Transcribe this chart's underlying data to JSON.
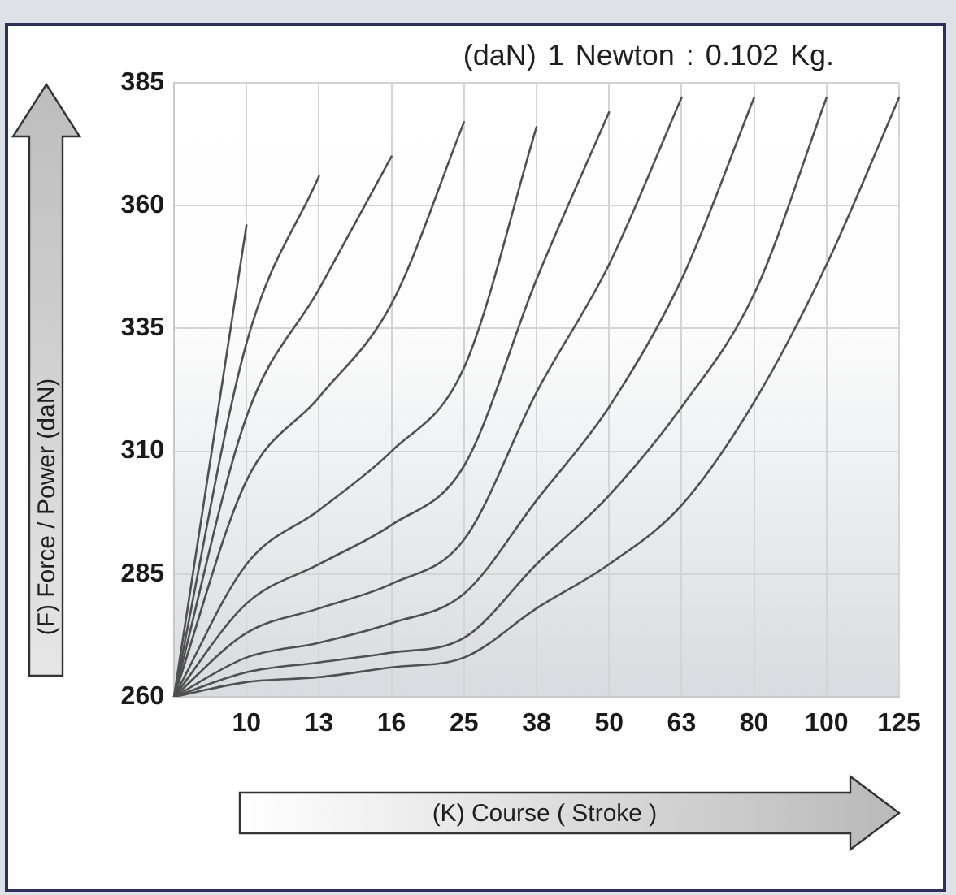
{
  "chart_data": {
    "type": "line",
    "title": "(daN) 1 Newton : 0.102 Kg.",
    "xlabel": "(K) Course ( Stroke )",
    "ylabel": "(F) Force / Power (daN)",
    "categories": [
      null,
      "10",
      "13",
      "16",
      "25",
      "38",
      "50",
      "63",
      "80",
      "100",
      "125"
    ],
    "ylim": [
      260,
      385
    ],
    "yticks": [
      260,
      285,
      310,
      335,
      360,
      385
    ],
    "grid": true,
    "marker": "none",
    "line_style": "solid",
    "series": [
      {
        "color": "#505050",
        "values": [
          260,
          356,
          null,
          null,
          null,
          null,
          null,
          null,
          null,
          null,
          null
        ]
      },
      {
        "color": "#505050",
        "values": [
          260,
          332,
          366,
          null,
          null,
          null,
          null,
          null,
          null,
          null,
          null
        ]
      },
      {
        "color": "#505050",
        "values": [
          260,
          317,
          343,
          370,
          null,
          null,
          null,
          null,
          null,
          null,
          null
        ]
      },
      {
        "color": "#505050",
        "values": [
          260,
          304,
          321,
          340,
          377,
          null,
          null,
          null,
          null,
          null,
          null
        ]
      },
      {
        "color": "#505050",
        "values": [
          260,
          287,
          298,
          310,
          327,
          376,
          null,
          null,
          null,
          null,
          null
        ]
      },
      {
        "color": "#505050",
        "values": [
          260,
          279,
          287,
          295,
          307,
          345,
          379,
          null,
          null,
          null,
          null
        ]
      },
      {
        "color": "#505050",
        "values": [
          260,
          273,
          278,
          283,
          292,
          322,
          348,
          382,
          null,
          null,
          null
        ]
      },
      {
        "color": "#505050",
        "values": [
          260,
          268,
          271,
          275,
          281,
          300,
          319,
          345,
          382,
          null,
          null
        ]
      },
      {
        "color": "#505050",
        "values": [
          260,
          265,
          267,
          269,
          272,
          287,
          301,
          319,
          342,
          382,
          null
        ]
      },
      {
        "color": "#505050",
        "values": [
          260,
          263,
          264,
          266,
          268,
          278,
          287,
          299,
          320,
          348,
          382
        ]
      }
    ]
  }
}
